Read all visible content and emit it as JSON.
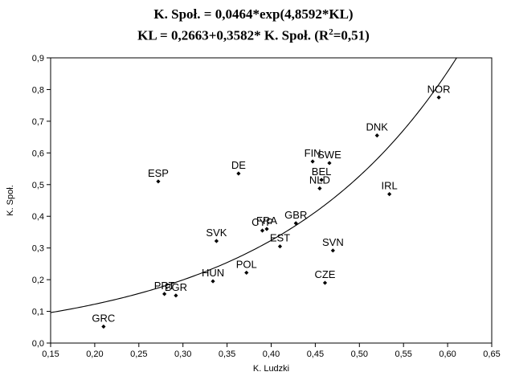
{
  "chart_data": {
    "type": "scatter",
    "title_line1": "K. Społ. = 0,0464*exp(4,8592*KL)",
    "title_line2_prefix": "KL = 0,2663+0,3582* K. Społ. (R",
    "title_line2_sup": "2",
    "title_line2_suffix": "=0,51)",
    "xlabel": "K. Ludzki",
    "ylabel": "K. Społ.",
    "xlim": [
      0.15,
      0.65
    ],
    "ylim": [
      0.0,
      0.9
    ],
    "x_ticks": [
      0.15,
      0.2,
      0.25,
      0.3,
      0.35,
      0.4,
      0.45,
      0.5,
      0.55,
      0.6,
      0.65
    ],
    "x_tick_labels": [
      "0,15",
      "0,20",
      "0,25",
      "0,30",
      "0,35",
      "0,40",
      "0,45",
      "0,50",
      "0,55",
      "0,60",
      "0,65"
    ],
    "y_ticks": [
      0.0,
      0.1,
      0.2,
      0.3,
      0.4,
      0.5,
      0.6,
      0.7,
      0.8,
      0.9
    ],
    "y_tick_labels": [
      "0,0",
      "0,1",
      "0,2",
      "0,3",
      "0,4",
      "0,5",
      "0,6",
      "0,7",
      "0,8",
      "0,9"
    ],
    "fit_curve": {
      "a": 0.0464,
      "b": 4.8592
    },
    "points": [
      {
        "label": "NOR",
        "x": 0.59,
        "y": 0.775
      },
      {
        "label": "DNK",
        "x": 0.52,
        "y": 0.655
      },
      {
        "label": "FIN",
        "x": 0.447,
        "y": 0.573
      },
      {
        "label": "SWE",
        "x": 0.466,
        "y": 0.568
      },
      {
        "label": "BEL",
        "x": 0.457,
        "y": 0.515
      },
      {
        "label": "NLD",
        "x": 0.455,
        "y": 0.488
      },
      {
        "label": "IRL",
        "x": 0.534,
        "y": 0.47
      },
      {
        "label": "ESP",
        "x": 0.272,
        "y": 0.51
      },
      {
        "label": "DE",
        "x": 0.363,
        "y": 0.535
      },
      {
        "label": "GBR",
        "x": 0.428,
        "y": 0.378
      },
      {
        "label": "FRA",
        "x": 0.395,
        "y": 0.36
      },
      {
        "label": "CYP",
        "x": 0.39,
        "y": 0.355
      },
      {
        "label": "SVK",
        "x": 0.338,
        "y": 0.322
      },
      {
        "label": "EST",
        "x": 0.41,
        "y": 0.305
      },
      {
        "label": "SVN",
        "x": 0.47,
        "y": 0.292
      },
      {
        "label": "POL",
        "x": 0.372,
        "y": 0.222
      },
      {
        "label": "HUN",
        "x": 0.334,
        "y": 0.195
      },
      {
        "label": "CZE",
        "x": 0.461,
        "y": 0.19
      },
      {
        "label": "PRT",
        "x": 0.279,
        "y": 0.155
      },
      {
        "label": "BGR",
        "x": 0.292,
        "y": 0.15
      },
      {
        "label": "GRC",
        "x": 0.21,
        "y": 0.052
      }
    ]
  }
}
